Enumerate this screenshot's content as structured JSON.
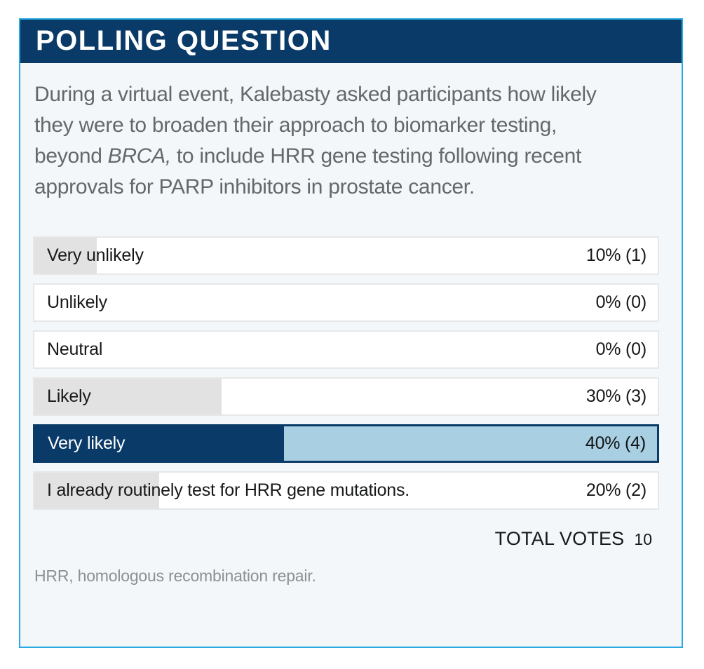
{
  "header": {
    "title": "POLLING QUESTION"
  },
  "question": {
    "part1": "During a virtual event, Kalebasty asked participants how likely they were to broaden their approach to biomarker testing, beyond ",
    "italic": "BRCA,",
    "part2": " to include HRR gene testing following recent approvals for PARP inhibitors in prostate cancer."
  },
  "poll": {
    "options": [
      {
        "label": "Very unlikely",
        "percent": 10,
        "votes": 1,
        "display": "10% (1)",
        "highlighted": false
      },
      {
        "label": "Unlikely",
        "percent": 0,
        "votes": 0,
        "display": "0% (0)",
        "highlighted": false
      },
      {
        "label": "Neutral",
        "percent": 0,
        "votes": 0,
        "display": "0% (0)",
        "highlighted": false
      },
      {
        "label": "Likely",
        "percent": 30,
        "votes": 3,
        "display": "30% (3)",
        "highlighted": false
      },
      {
        "label": "Very likely",
        "percent": 40,
        "votes": 4,
        "display": "40% (4)",
        "highlighted": true
      },
      {
        "label": "I already routinely test for HRR gene mutations.",
        "percent": 20,
        "votes": 2,
        "display": "20% (2)",
        "highlighted": false
      }
    ],
    "total_votes_label": "TOTAL VOTES",
    "total_votes": "10"
  },
  "footnote": "HRR, homologous recombination repair.",
  "colors": {
    "navy": "#0A3A67",
    "light_blue": "#A9CFE3",
    "panel_border_cyan": "#29ABE2",
    "panel_background": "#F3F7FA",
    "bar_gray_fill": "#E2E2E2"
  }
}
